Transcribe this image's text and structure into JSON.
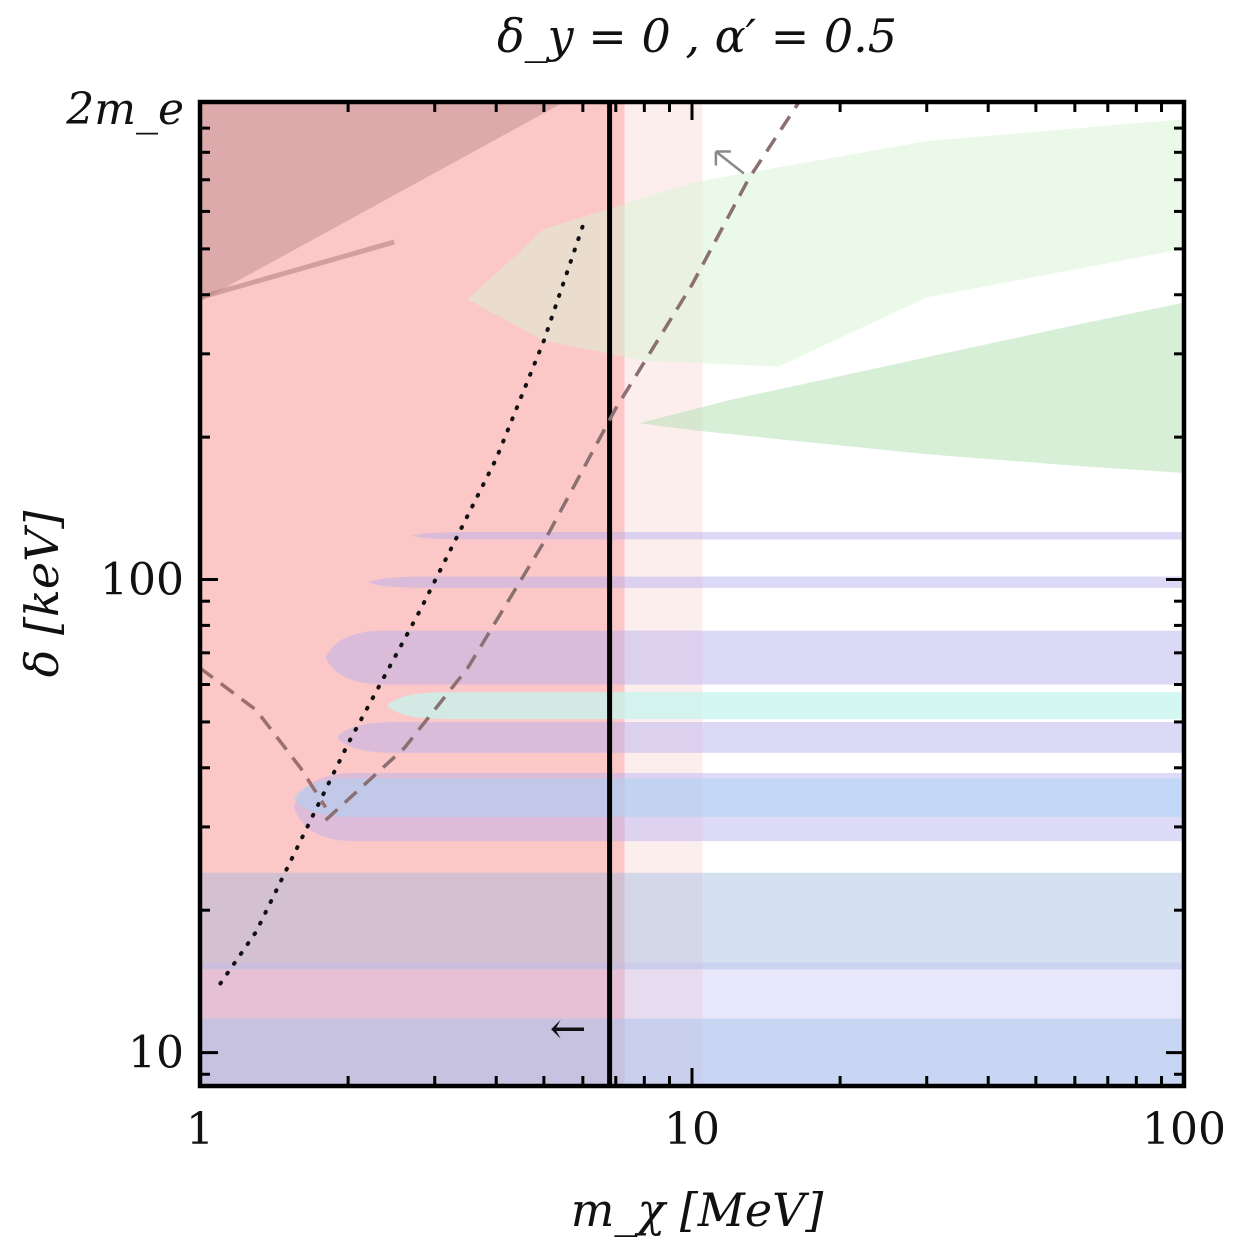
{
  "chart_data": {
    "type": "area",
    "title": "δ_y = 0 ,  α′ = 0.5",
    "xlabel": "m_χ [MeV]",
    "ylabel": "δ [keV]",
    "x_scale": "log",
    "y_scale": "log",
    "xlim": [
      1,
      100
    ],
    "ylim": [
      8.5,
      1022
    ],
    "grid": false,
    "x_ticks": [
      {
        "value": 1,
        "label": "1"
      },
      {
        "value": 10,
        "label": "10"
      },
      {
        "value": 100,
        "label": "100"
      }
    ],
    "y_ticks": [
      {
        "value": 10,
        "label": "10"
      },
      {
        "value": 100,
        "label": "100"
      },
      {
        "value": 1022,
        "label": "2m_e"
      }
    ],
    "colors": {
      "pink": "#fcc7c7",
      "pink_light": "#fdeeee",
      "dark_red": "#dcaaaa",
      "green_light": "#eafbe9",
      "green": "#d0efd0",
      "lavender": "#ddd9f8",
      "blue": "#cde5fb",
      "gray_dash": "#7a7a7a",
      "brown_dash": "#9a6f6f"
    },
    "regions": [
      {
        "name": "excluded-main",
        "color": "#fcc7c7",
        "x_range": [
          1,
          7.3
        ],
        "y_range": [
          8.5,
          1022
        ]
      },
      {
        "name": "excluded-light",
        "color": "#fdeeee",
        "x_range": [
          7.3,
          10.5
        ],
        "y_range": [
          8.5,
          1022
        ]
      },
      {
        "name": "upper-corner",
        "color": "#dcaaaa",
        "polygon": [
          [
            1,
            1022
          ],
          [
            5.5,
            1022
          ],
          [
            1,
            387
          ]
        ]
      },
      {
        "name": "green-upper",
        "polygon": [
          [
            3.5,
            391
          ],
          [
            5,
            550
          ],
          [
            10,
            690
          ],
          [
            30,
            845
          ],
          [
            100,
            940
          ],
          [
            100,
            500
          ],
          [
            30,
            395
          ],
          [
            15,
            282
          ],
          [
            8,
            290
          ],
          [
            5,
            320
          ],
          [
            3.5,
            391
          ]
        ]
      },
      {
        "name": "green-lower",
        "polygon": [
          [
            7.8,
            214
          ],
          [
            12,
            240
          ],
          [
            30,
            295
          ],
          [
            60,
            345
          ],
          [
            100,
            385
          ],
          [
            100,
            168
          ],
          [
            60,
            174
          ],
          [
            30,
            184
          ],
          [
            15,
            198
          ],
          [
            10,
            207
          ],
          [
            7.8,
            214
          ]
        ]
      },
      {
        "name": "lavender-band-1",
        "y_range": [
          121.5,
          126
        ],
        "x_from": 2.7
      },
      {
        "name": "lavender-band-2",
        "y_range": [
          96,
          101.5
        ],
        "x_from": 2.2
      },
      {
        "name": "lavender-band-3",
        "y_range": [
          60,
          78
        ],
        "x_from": 1.8
      },
      {
        "name": "cyan-band",
        "y_range": [
          50.7,
          57.8
        ],
        "x_from": 2.4
      },
      {
        "name": "lavender-band-4",
        "y_range": [
          43,
          50
        ],
        "x_from": 1.9
      },
      {
        "name": "lavender-band-5",
        "y_range": [
          28,
          39
        ],
        "x_from": 1.55
      },
      {
        "name": "blue-band-1",
        "y_range": [
          31.5,
          38
        ],
        "x_from": 1.55
      },
      {
        "name": "blue-band-2",
        "y_range": [
          15,
          24
        ],
        "x_from": 1
      },
      {
        "name": "lavender-band-6",
        "y_range": [
          8.5,
          15.5
        ],
        "x_from": 1
      },
      {
        "name": "blue-band-3",
        "y_range": [
          8.5,
          11.8
        ],
        "x_from": 1
      }
    ],
    "lines": [
      {
        "name": "bound-vertical",
        "style": "solid",
        "x": 6.8
      },
      {
        "name": "dotted-curve",
        "style": "dotted",
        "points": [
          [
            1.1,
            14
          ],
          [
            1.3,
            18
          ],
          [
            1.6,
            28
          ],
          [
            2,
            45
          ],
          [
            2.8,
            86
          ],
          [
            4,
            180
          ],
          [
            5,
            320
          ],
          [
            6,
            560
          ]
        ]
      },
      {
        "name": "dashed-curve-1",
        "style": "dashed",
        "points": [
          [
            1.8,
            31
          ],
          [
            2.6,
            44
          ],
          [
            3.5,
            65
          ],
          [
            5,
            120
          ],
          [
            7,
            230
          ],
          [
            10,
            420
          ],
          [
            13,
            700
          ],
          [
            16.5,
            1022
          ]
        ]
      },
      {
        "name": "dashed-curve-2",
        "style": "dashed",
        "points": [
          [
            1,
            65
          ],
          [
            1.3,
            53
          ],
          [
            1.6,
            40
          ],
          [
            1.8,
            33
          ]
        ]
      }
    ],
    "annotations": [
      {
        "name": "arrow-left",
        "symbol": "←",
        "x": 5.6,
        "y": 11.2
      },
      {
        "name": "arrow-upper",
        "x": 11.5,
        "y": 780
      }
    ]
  }
}
